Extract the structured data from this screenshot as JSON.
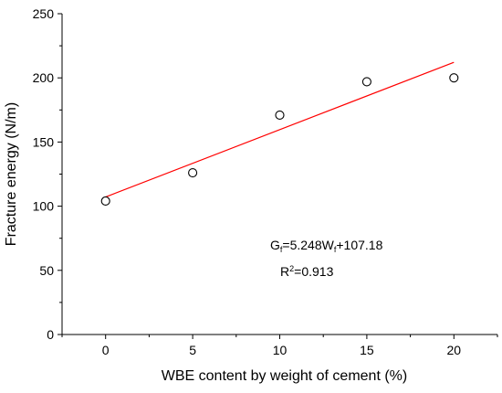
{
  "chart_data": {
    "type": "scatter",
    "title": "",
    "xlabel": "WBE content by weight of cement (%)",
    "ylabel": "Fracture energy (N/m)",
    "xlim": [
      -2.5,
      22.5
    ],
    "ylim": [
      0,
      250
    ],
    "x_ticks": [
      0,
      5,
      10,
      15,
      20
    ],
    "y_ticks": [
      0,
      50,
      100,
      150,
      200,
      250
    ],
    "grid": false,
    "legend": "none",
    "series": [
      {
        "marker": "hollow-circle",
        "color": "#000000",
        "points": [
          {
            "x": 0,
            "y": 104
          },
          {
            "x": 5,
            "y": 126
          },
          {
            "x": 10,
            "y": 171
          },
          {
            "x": 15,
            "y": 197
          },
          {
            "x": 20,
            "y": 200
          }
        ]
      }
    ],
    "fit_line": {
      "slope": 5.248,
      "intercept": 107.18,
      "x_range": [
        0,
        20
      ],
      "color": "#ff0000"
    },
    "annotations": {
      "equation": {
        "main": "G",
        "main_sub": "f",
        "middle": "=5.248W",
        "middle_sub": "f",
        "tail": "+107.18"
      },
      "r_squared": {
        "main": "R",
        "sup": "2",
        "tail": "=0.913"
      }
    }
  }
}
